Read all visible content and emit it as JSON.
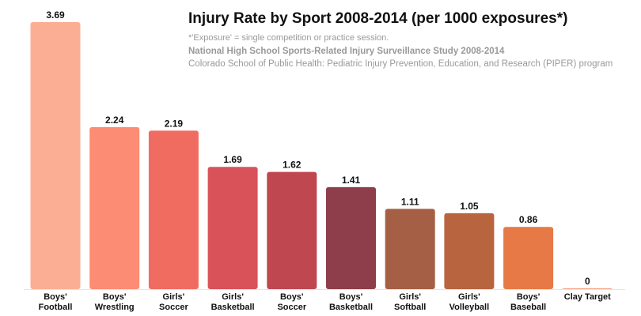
{
  "chart_data": {
    "type": "bar",
    "title": "Injury Rate by Sport 2008-2014 (per 1000 exposures*)",
    "notes": [
      "*'Exposure' = single competition or practice session.",
      "National High School Sports-Related Injury Surveillance Study 2008-2014",
      "Colorado School of Public Health: Pediatric Injury Prevention, Education, and Research (PIPER) program"
    ],
    "categories": [
      "Boys'\nFootball",
      "Boys'\nWrestling",
      "Girls'\nSoccer",
      "Girls'\nBasketball",
      "Boys'\nSoccer",
      "Boys'\nBasketball",
      "Girls'\nSoftball",
      "Girls'\nVolleyball",
      "Boys'\nBaseball",
      "Clay Target"
    ],
    "values": [
      3.69,
      2.24,
      2.19,
      1.69,
      1.62,
      1.41,
      1.11,
      1.05,
      0.86,
      0
    ],
    "colors": [
      "#fcae94",
      "#fc8c74",
      "#f06c60",
      "#d9525a",
      "#bf4750",
      "#8e3e4a",
      "#a55f45",
      "#b8643e",
      "#e67945",
      "#f4a080"
    ]
  }
}
